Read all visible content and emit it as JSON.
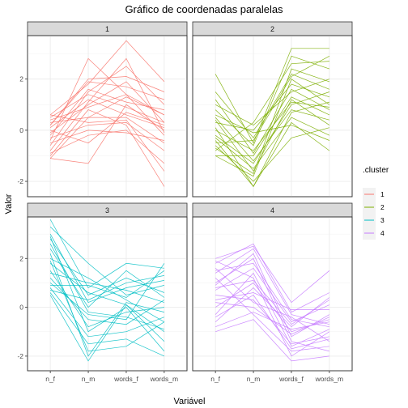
{
  "chart_data": {
    "type": "line",
    "title": "Gráfico de coordenadas paralelas",
    "xlabel": "Variável",
    "ylabel": "Valor",
    "categories": [
      "n_f",
      "n_m",
      "words_f",
      "words_m"
    ],
    "y_ticks": [
      -2,
      0,
      2
    ],
    "ylim": [
      -2.6,
      3.7
    ],
    "grid": true,
    "facet_layout": "2x2",
    "legend": {
      "title": ".cluster",
      "placement": "right",
      "entries": [
        {
          "label": "1",
          "color": "#F8766D"
        },
        {
          "label": "2",
          "color": "#7CAE00"
        },
        {
          "label": "3",
          "color": "#00BFC4"
        },
        {
          "label": "4",
          "color": "#C77CFF"
        }
      ]
    },
    "panels": [
      {
        "label": "1",
        "color": "#F8766D",
        "series": [
          {
            "values": [
              0.6,
              1.8,
              3.5,
              1.9
            ]
          },
          {
            "values": [
              -1.1,
              -1.3,
              1.0,
              0.0
            ]
          },
          {
            "values": [
              -0.6,
              1.5,
              2.5,
              1.0
            ]
          },
          {
            "values": [
              -0.1,
              1.0,
              1.9,
              0.3
            ]
          },
          {
            "values": [
              0.3,
              0.5,
              0.5,
              -0.5
            ]
          },
          {
            "values": [
              -0.9,
              -0.2,
              0.0,
              -1.3
            ]
          },
          {
            "values": [
              0.2,
              2.0,
              2.1,
              1.5
            ]
          },
          {
            "values": [
              0.5,
              1.4,
              0.9,
              0.3
            ]
          },
          {
            "values": [
              -0.3,
              0.2,
              0.3,
              -0.8
            ]
          },
          {
            "values": [
              -1.0,
              0.8,
              0.2,
              -2.2
            ]
          },
          {
            "values": [
              0.1,
              1.2,
              0.6,
              0.1
            ]
          },
          {
            "values": [
              -0.5,
              0.0,
              -0.1,
              -0.4
            ]
          },
          {
            "values": [
              0.4,
              0.9,
              1.4,
              0.6
            ]
          },
          {
            "values": [
              -0.8,
              1.1,
              2.8,
              -0.1
            ]
          },
          {
            "values": [
              0.6,
              0.3,
              0.4,
              -1.6
            ]
          },
          {
            "values": [
              -0.2,
              1.6,
              1.1,
              0.8
            ]
          },
          {
            "values": [
              0.2,
              1.9,
              1.7,
              1.2
            ]
          },
          {
            "values": [
              -0.4,
              2.8,
              1.4,
              -0.2
            ]
          },
          {
            "values": [
              0.0,
              -0.5,
              0.7,
              0.2
            ]
          },
          {
            "values": [
              -1.1,
              0.5,
              1.3,
              0.6
            ]
          }
        ]
      },
      {
        "label": "2",
        "color": "#7CAE00",
        "series": [
          {
            "values": [
              2.2,
              -0.5,
              3.2,
              3.2
            ]
          },
          {
            "values": [
              -0.4,
              -2.2,
              0.3,
              -0.8
            ]
          },
          {
            "values": [
              -1.0,
              -1.8,
              2.0,
              1.0
            ]
          },
          {
            "values": [
              1.0,
              0.2,
              1.5,
              2.0
            ]
          },
          {
            "values": [
              0.5,
              -1.2,
              0.8,
              0.4
            ]
          },
          {
            "values": [
              -0.8,
              0.3,
              2.6,
              2.7
            ]
          },
          {
            "values": [
              0.0,
              -0.8,
              1.1,
              0.9
            ]
          },
          {
            "values": [
              -0.3,
              -1.5,
              0.5,
              -0.2
            ]
          },
          {
            "values": [
              1.5,
              -0.3,
              2.2,
              1.6
            ]
          },
          {
            "values": [
              -0.6,
              -2.0,
              -0.3,
              0.1
            ]
          },
          {
            "values": [
              0.3,
              0.0,
              1.8,
              1.3
            ]
          },
          {
            "values": [
              -1.0,
              -1.0,
              1.3,
              0.6
            ]
          },
          {
            "values": [
              0.8,
              -0.6,
              2.9,
              2.4
            ]
          },
          {
            "values": [
              -0.2,
              -1.3,
              1.0,
              1.5
            ]
          },
          {
            "values": [
              0.6,
              -0.1,
              0.2,
              -0.4
            ]
          },
          {
            "values": [
              -0.7,
              -1.7,
              2.4,
              1.9
            ]
          },
          {
            "values": [
              1.2,
              -0.9,
              1.6,
              0.8
            ]
          },
          {
            "values": [
              0.1,
              -2.2,
              0.7,
              1.1
            ]
          },
          {
            "values": [
              -0.5,
              -0.4,
              2.1,
              2.9
            ]
          },
          {
            "values": [
              0.4,
              -1.6,
              1.2,
              0.2
            ]
          }
        ]
      },
      {
        "label": "3",
        "color": "#00BFC4",
        "series": [
          {
            "values": [
              3.6,
              0.8,
              1.8,
              1.6
            ]
          },
          {
            "values": [
              0.5,
              -2.2,
              0.1,
              -1.0
            ]
          },
          {
            "values": [
              2.8,
              0.5,
              1.2,
              0.6
            ]
          },
          {
            "values": [
              1.0,
              -0.3,
              -0.5,
              1.8
            ]
          },
          {
            "values": [
              2.0,
              1.2,
              0.3,
              -0.6
            ]
          },
          {
            "values": [
              0.6,
              -1.5,
              -1.3,
              -2.0
            ]
          },
          {
            "values": [
              3.0,
              0.2,
              0.8,
              1.1
            ]
          },
          {
            "values": [
              1.5,
              -0.8,
              -0.2,
              0.0
            ]
          },
          {
            "values": [
              2.4,
              0.0,
              1.5,
              0.4
            ]
          },
          {
            "values": [
              0.8,
              -1.2,
              -1.0,
              -0.4
            ]
          },
          {
            "values": [
              1.8,
              0.6,
              0.1,
              -1.4
            ]
          },
          {
            "values": [
              3.3,
              1.8,
              0.5,
              0.9
            ]
          },
          {
            "values": [
              1.2,
              -0.5,
              -0.7,
              0.3
            ]
          },
          {
            "values": [
              2.2,
              -2.0,
              0.2,
              -0.2
            ]
          },
          {
            "values": [
              0.7,
              0.3,
              1.0,
              1.3
            ]
          },
          {
            "values": [
              2.6,
              -0.2,
              -0.4,
              -0.9
            ]
          },
          {
            "values": [
              1.4,
              1.0,
              0.7,
              0.2
            ]
          },
          {
            "values": [
              1.9,
              -1.8,
              -1.6,
              -0.6
            ]
          },
          {
            "values": [
              0.9,
              0.9,
              0.4,
              1.5
            ]
          },
          {
            "values": [
              2.9,
              -1.0,
              0.0,
              -1.8
            ]
          }
        ]
      },
      {
        "label": "4",
        "color": "#C77CFF",
        "series": [
          {
            "values": [
              2.0,
              2.5,
              0.2,
              1.5
            ]
          },
          {
            "values": [
              -1.0,
              -0.5,
              -2.2,
              -2.0
            ]
          },
          {
            "values": [
              1.5,
              1.8,
              -0.5,
              -0.8
            ]
          },
          {
            "values": [
              0.5,
              0.3,
              -1.5,
              -1.2
            ]
          },
          {
            "values": [
              1.8,
              2.6,
              -0.2,
              0.6
            ]
          },
          {
            "values": [
              0.0,
              1.0,
              -1.0,
              -0.5
            ]
          },
          {
            "values": [
              1.2,
              -0.3,
              -1.8,
              -1.6
            ]
          },
          {
            "values": [
              -0.6,
              0.8,
              -0.8,
              0.4
            ]
          },
          {
            "values": [
              0.9,
              2.2,
              -1.2,
              -0.3
            ]
          },
          {
            "values": [
              1.6,
              0.2,
              -0.4,
              -1.4
            ]
          },
          {
            "values": [
              -0.3,
              1.4,
              -1.6,
              -0.9
            ]
          },
          {
            "values": [
              0.3,
              0.6,
              -0.1,
              -0.1
            ]
          },
          {
            "values": [
              1.0,
              2.0,
              -1.4,
              -1.8
            ]
          },
          {
            "values": [
              -0.8,
              -0.2,
              -0.9,
              -0.6
            ]
          },
          {
            "values": [
              0.7,
              1.6,
              -0.6,
              0.1
            ]
          },
          {
            "values": [
              1.9,
              1.2,
              -2.0,
              -1.0
            ]
          },
          {
            "values": [
              0.2,
              0.0,
              -1.1,
              -0.4
            ]
          },
          {
            "values": [
              1.4,
              2.4,
              -0.3,
              -0.7
            ]
          },
          {
            "values": [
              -0.4,
              0.5,
              -1.7,
              -1.3
            ]
          },
          {
            "values": [
              0.8,
              1.1,
              -0.7,
              0.3
            ]
          }
        ]
      }
    ]
  }
}
